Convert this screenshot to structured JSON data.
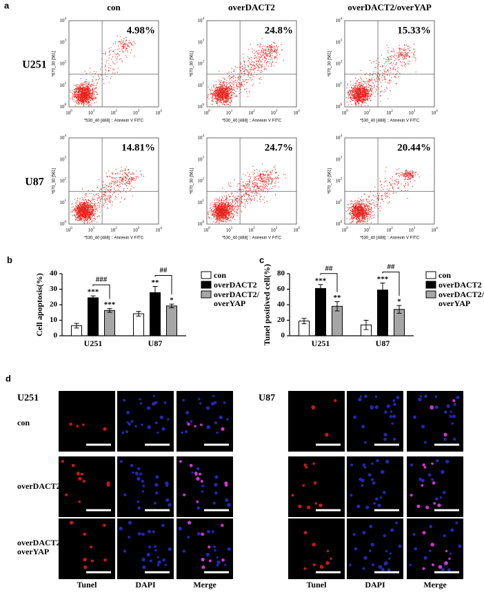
{
  "panel_a": {
    "label": "a",
    "columns": [
      "con",
      "overDACT2",
      "overDACT2/overYAP"
    ],
    "rows": [
      {
        "label": "U251",
        "percentages": [
          "4.98%",
          "24.8%",
          "15.33%"
        ]
      },
      {
        "label": "U87",
        "percentages": [
          "14.81%",
          "24.7%",
          "20.44%"
        ]
      }
    ],
    "x_axis_label": "*530_40 [488] :: Annexin V FITC",
    "y_axis_label": "*670_30 [561]",
    "tick_base": "10",
    "tick_exponents": [
      "0",
      "1",
      "2",
      "3",
      "4"
    ]
  },
  "chart_data": [
    {
      "type": "bar",
      "panel_label": "b",
      "ylabel": "Cell apoptosis(%)",
      "categories": [
        "U251",
        "U87"
      ],
      "series": [
        {
          "name": "con",
          "color": "#ffffff",
          "values": [
            6.5,
            14.2
          ],
          "errors": [
            1.5,
            1.5
          ]
        },
        {
          "name": "overDACT2",
          "color": "#000000",
          "values": [
            24.5,
            27.8
          ],
          "errors": [
            1.2,
            4.0
          ],
          "significance": [
            "***",
            "**"
          ]
        },
        {
          "name": "overDACT2/\noverYAP",
          "color": "#a6a6a6",
          "values": [
            16.3,
            19.2
          ],
          "errors": [
            1.2,
            1.2
          ],
          "significance": [
            "***",
            "*"
          ]
        }
      ],
      "brackets": [
        "###",
        "##"
      ],
      "ylim": [
        0,
        40
      ],
      "yticks": [
        0,
        10,
        20,
        30,
        40
      ]
    },
    {
      "type": "bar",
      "panel_label": "c",
      "ylabel": "Tunel positived cell(%)",
      "categories": [
        "U251",
        "U87"
      ],
      "series": [
        {
          "name": "con",
          "color": "#ffffff",
          "values": [
            19,
            14
          ],
          "errors": [
            3.5,
            6
          ]
        },
        {
          "name": "overDACT2",
          "color": "#000000",
          "values": [
            61,
            59
          ],
          "errors": [
            5,
            9
          ],
          "significance": [
            "***",
            "***"
          ]
        },
        {
          "name": "overDACT2/\noverYAP",
          "color": "#a6a6a6",
          "values": [
            38,
            34
          ],
          "errors": [
            6,
            5
          ],
          "significance": [
            "**",
            "*"
          ]
        }
      ],
      "brackets": [
        "##",
        "##"
      ],
      "ylim": [
        0,
        80
      ],
      "yticks": [
        0,
        20,
        40,
        60,
        80
      ]
    }
  ],
  "panel_d": {
    "label": "d",
    "groups": [
      "U251",
      "U87"
    ],
    "rows": [
      "con",
      "overDACT2",
      "overDACT2/\noverYAP"
    ],
    "columns": [
      "Tunel",
      "DAPI",
      "Merge"
    ]
  }
}
